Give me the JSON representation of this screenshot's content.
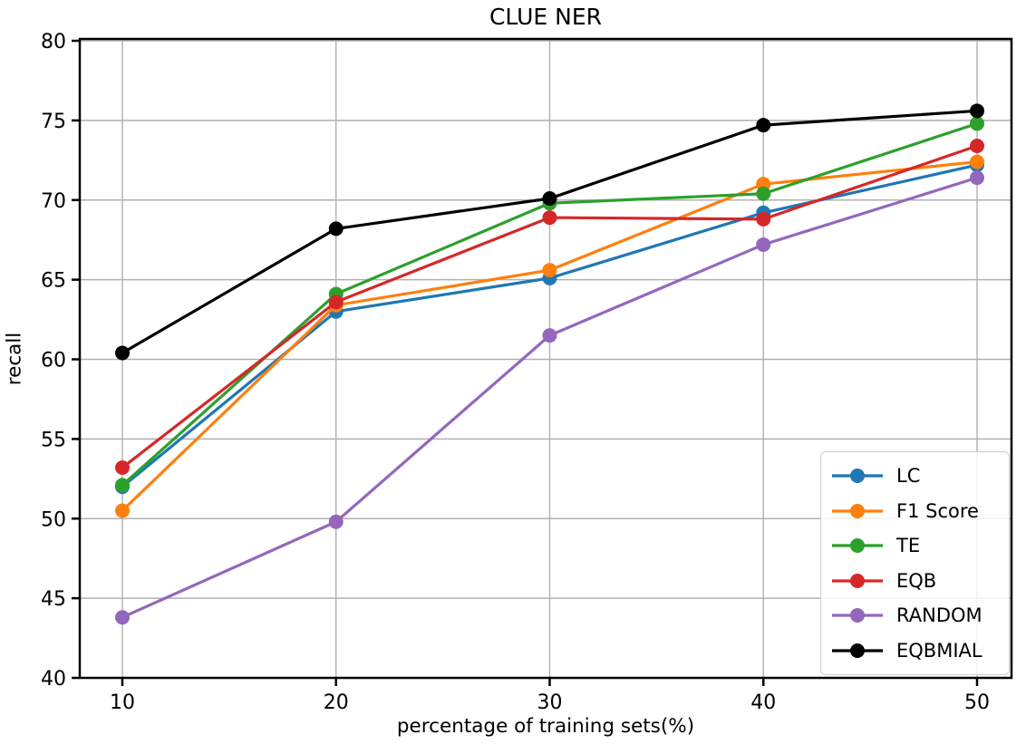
{
  "chart_data": {
    "type": "line",
    "title": "CLUE NER",
    "xlabel": "percentage of training sets(%)",
    "ylabel": "recall",
    "x": [
      10,
      20,
      30,
      40,
      50
    ],
    "xticks": [
      10,
      20,
      30,
      40,
      50
    ],
    "yticks": [
      40,
      45,
      50,
      55,
      60,
      65,
      70,
      75,
      80
    ],
    "ylim": [
      40,
      80
    ],
    "xlim": [
      8,
      52
    ],
    "grid": true,
    "legend_position": "lower right",
    "marker": "circle",
    "grid_color": "#b0b0b0",
    "spine_color": "#000000",
    "series": [
      {
        "name": "LC",
        "color": "#1f77b4",
        "values": [
          52.0,
          63.0,
          65.1,
          69.2,
          72.2
        ]
      },
      {
        "name": "F1 Score",
        "color": "#ff7f0e",
        "values": [
          50.5,
          63.4,
          65.6,
          71.0,
          72.4
        ]
      },
      {
        "name": "TE",
        "color": "#2ca02c",
        "values": [
          52.1,
          64.1,
          69.8,
          70.4,
          74.8
        ]
      },
      {
        "name": "EQB",
        "color": "#d62728",
        "values": [
          53.2,
          63.6,
          68.9,
          68.8,
          73.4
        ]
      },
      {
        "name": "RANDOM",
        "color": "#9467bd",
        "values": [
          43.8,
          49.8,
          61.5,
          67.2,
          71.4
        ]
      },
      {
        "name": "EQBMIAL",
        "color": "#000000",
        "values": [
          60.4,
          68.2,
          70.1,
          74.7,
          75.6
        ]
      }
    ]
  }
}
